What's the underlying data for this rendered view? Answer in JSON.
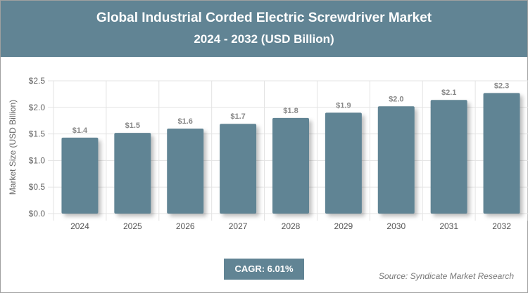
{
  "header": {
    "title": "Global Industrial Corded Electric Screwdriver Market",
    "subtitle": "2024 - 2032 (USD Billion)"
  },
  "chart_data": {
    "type": "bar",
    "title": "Global Industrial Corded Electric Screwdriver Market",
    "subtitle": "2024 - 2032 (USD Billion)",
    "ylabel": "Market Size (USD Billion)",
    "xlabel": "",
    "categories": [
      "2024",
      "2025",
      "2026",
      "2027",
      "2028",
      "2029",
      "2030",
      "2031",
      "2032"
    ],
    "values": [
      1.43,
      1.52,
      1.6,
      1.69,
      1.8,
      1.9,
      2.02,
      2.14,
      2.27
    ],
    "data_labels": [
      "$1.4",
      "$1.5",
      "$1.6",
      "$1.7",
      "$1.8",
      "$1.9",
      "$2.0",
      "$2.1",
      "$2.3"
    ],
    "ylim": [
      0,
      2.5
    ],
    "yticks": [
      "$0.0",
      "$0.5",
      "$1.0",
      "$1.5",
      "$2.0",
      "$2.5"
    ],
    "grid": true,
    "bar_color": "#618494"
  },
  "footer": {
    "cagr": "CAGR: 6.01%",
    "source": "Source: Syndicate Market Research"
  }
}
